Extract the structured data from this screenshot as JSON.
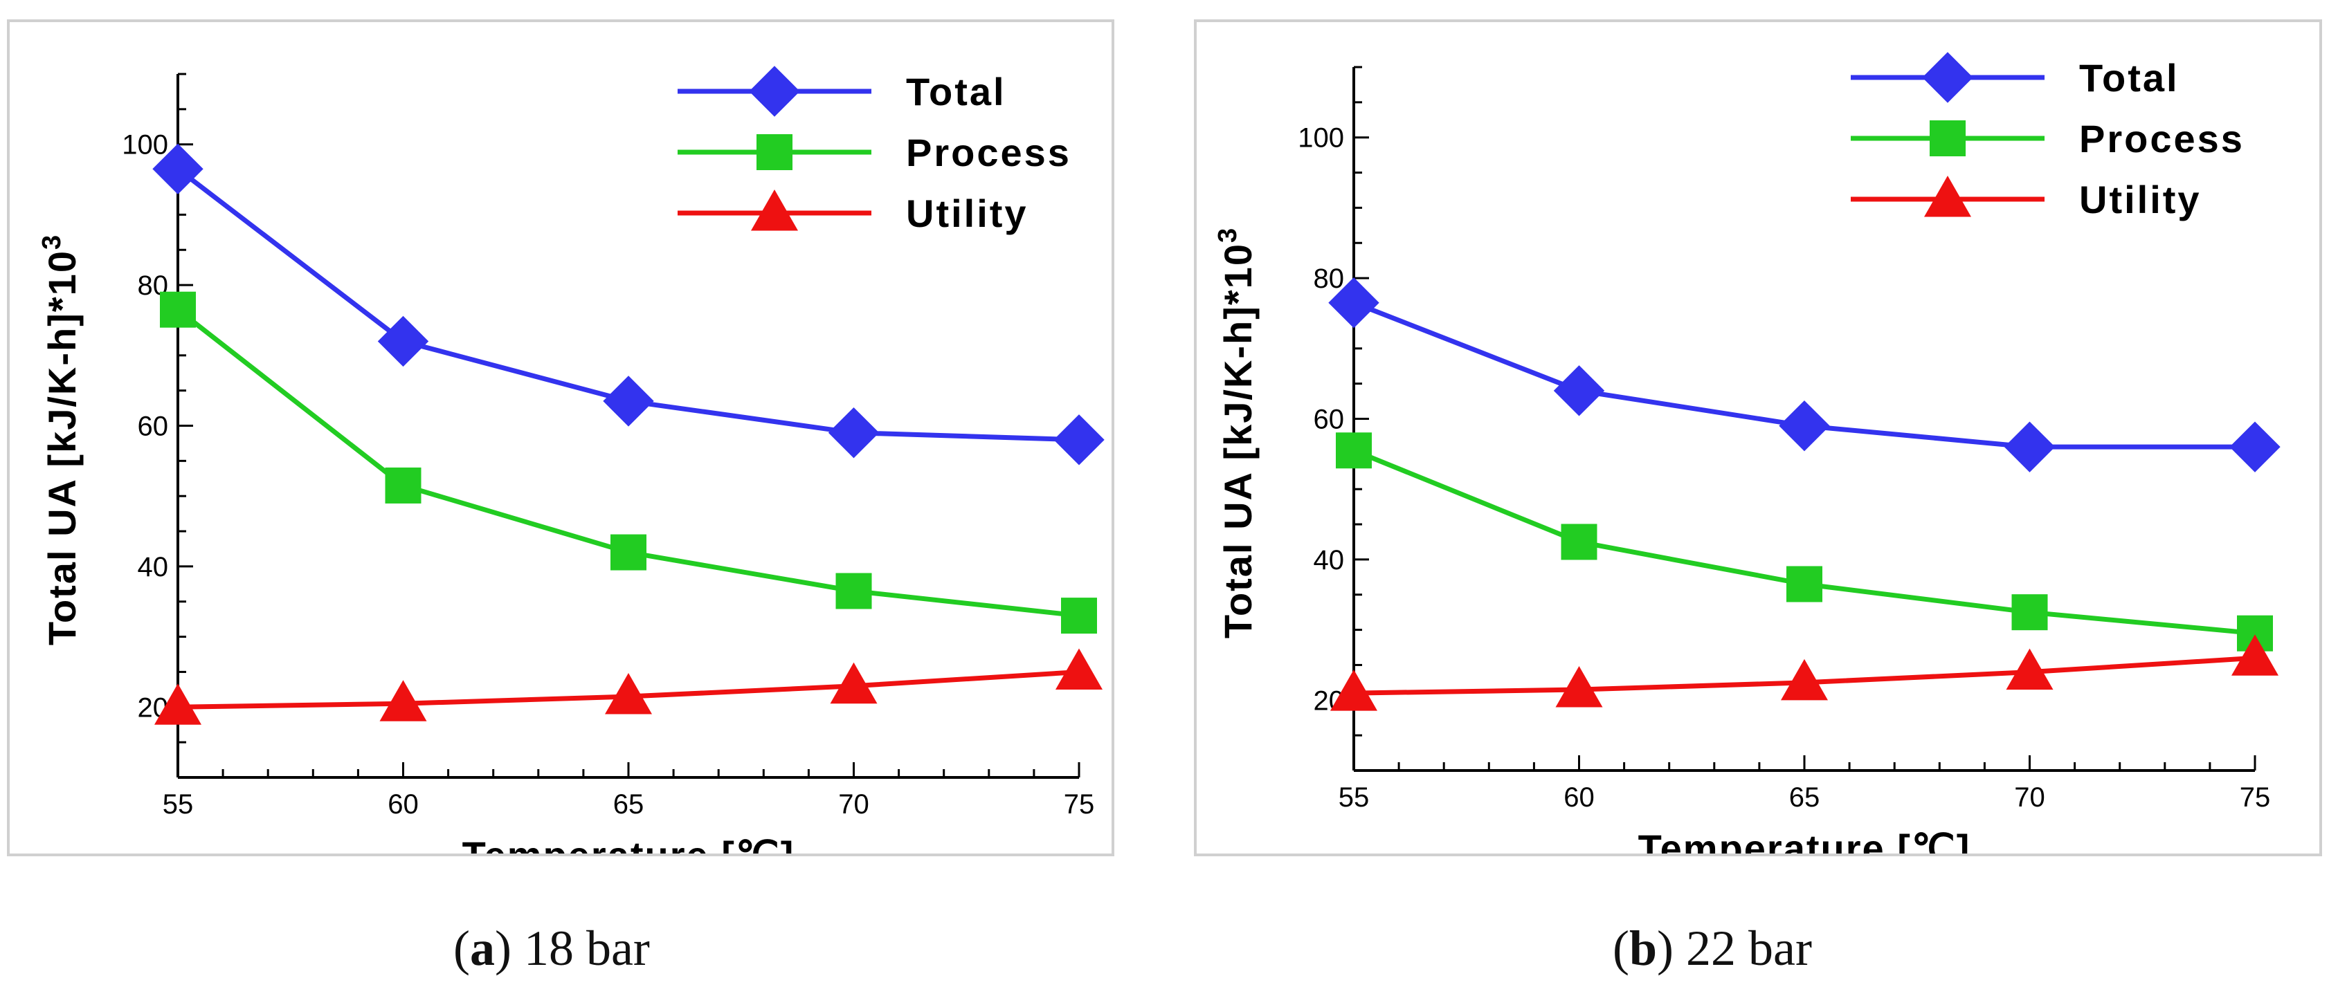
{
  "chart_data": [
    {
      "type": "line",
      "id": "a",
      "caption_letter": "a",
      "caption_text": "18 bar",
      "xlabel": "Temperature [℃]",
      "ylabel_main": "Total UA [kJ/K-h]*10",
      "ylabel_sup": "3",
      "x": [
        55,
        60,
        65,
        70,
        75
      ],
      "xlim": [
        55,
        75
      ],
      "ylim": [
        10,
        110
      ],
      "xticks": [
        55,
        60,
        65,
        70,
        75
      ],
      "yticks": [
        20,
        40,
        60,
        80,
        100
      ],
      "grid": false,
      "legend_position": "top-right",
      "series": [
        {
          "name": "Total",
          "color": "#3333ee",
          "marker": "diamond",
          "values": [
            96.5,
            72,
            63.5,
            59,
            58
          ]
        },
        {
          "name": "Process",
          "color": "#22cc22",
          "marker": "square",
          "values": [
            76.5,
            51.5,
            42,
            36.5,
            33
          ]
        },
        {
          "name": "Utility",
          "color": "#ee1111",
          "marker": "triangle",
          "values": [
            20,
            20.5,
            21.5,
            23,
            25
          ]
        }
      ]
    },
    {
      "type": "line",
      "id": "b",
      "caption_letter": "b",
      "caption_text": "22 bar",
      "xlabel": "Temperature [℃]",
      "ylabel_main": "Total UA [kJ/K-h]*10",
      "ylabel_sup": "3",
      "x": [
        55,
        60,
        65,
        70,
        75
      ],
      "xlim": [
        55,
        75
      ],
      "ylim": [
        10,
        110
      ],
      "xticks": [
        55,
        60,
        65,
        70,
        75
      ],
      "yticks": [
        20,
        40,
        60,
        80,
        100
      ],
      "grid": false,
      "legend_position": "top-right",
      "series": [
        {
          "name": "Total",
          "color": "#3333ee",
          "marker": "diamond",
          "values": [
            76.5,
            64,
            59,
            56,
            56
          ]
        },
        {
          "name": "Process",
          "color": "#22cc22",
          "marker": "square",
          "values": [
            55.5,
            42.5,
            36.5,
            32.5,
            29.5
          ]
        },
        {
          "name": "Utility",
          "color": "#ee1111",
          "marker": "triangle",
          "values": [
            21,
            21.5,
            22.5,
            24,
            26
          ]
        }
      ]
    }
  ]
}
